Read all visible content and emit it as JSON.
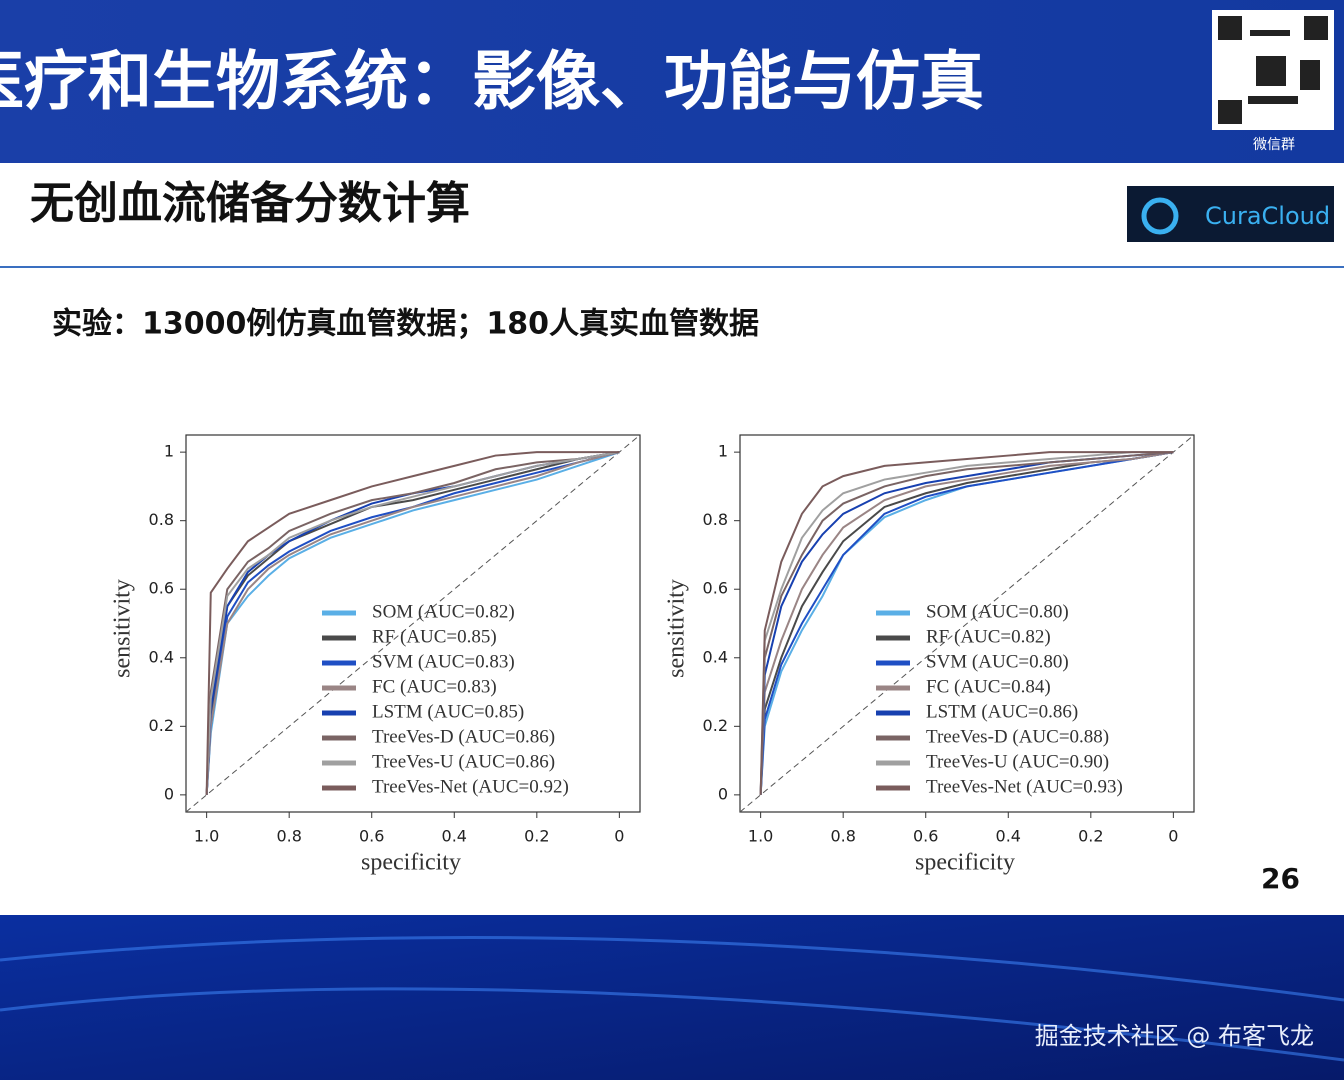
{
  "slide": {
    "title": "医疗和生物系统：影像、功能与仿真",
    "qr_caption": "微信群",
    "subtitle": "无创血流储备分数计算",
    "logo": "CuraCloud",
    "experiment": "实验：13000例仿真血管数据；180人真实血管数据",
    "page_number": "26",
    "watermark": "掘金技术社区 @ 布客飞龙"
  },
  "chart_data": [
    {
      "type": "line",
      "x_label": "specificity",
      "y_label": "sensitivity",
      "xlim": [
        1.05,
        -0.05
      ],
      "ylim": [
        -0.05,
        1.05
      ],
      "xticks": [
        {
          "value": 1,
          "label": "1.0"
        },
        0.8,
        0.6,
        0.4,
        0.2,
        0
      ],
      "yticks": [
        0,
        0.2,
        0.4,
        0.6,
        0.8,
        1
      ],
      "x": [
        1.0,
        0.99,
        0.95,
        0.9,
        0.85,
        0.8,
        0.7,
        0.6,
        0.5,
        0.4,
        0.3,
        0.2,
        0.1,
        0.0
      ],
      "series": [
        {
          "name": "SOM (AUC=0.82)",
          "color": "#5aafe6",
          "values": [
            0,
            0.18,
            0.5,
            0.58,
            0.64,
            0.69,
            0.75,
            0.79,
            0.83,
            0.86,
            0.89,
            0.92,
            0.96,
            1.0
          ]
        },
        {
          "name": "RF (AUC=0.85)",
          "color": "#4a4a4a",
          "values": [
            0,
            0.22,
            0.55,
            0.64,
            0.69,
            0.74,
            0.79,
            0.84,
            0.86,
            0.89,
            0.92,
            0.95,
            0.98,
            1.0
          ]
        },
        {
          "name": "SVM (AUC=0.83)",
          "color": "#1f4fc4",
          "values": [
            0,
            0.2,
            0.52,
            0.62,
            0.67,
            0.71,
            0.77,
            0.81,
            0.84,
            0.88,
            0.91,
            0.94,
            0.97,
            1.0
          ]
        },
        {
          "name": "FC (AUC=0.83)",
          "color": "#9a8585",
          "values": [
            0,
            0.2,
            0.5,
            0.6,
            0.66,
            0.7,
            0.76,
            0.8,
            0.84,
            0.87,
            0.9,
            0.93,
            0.97,
            1.0
          ]
        },
        {
          "name": "LSTM (AUC=0.85)",
          "color": "#1740b0",
          "values": [
            0,
            0.25,
            0.55,
            0.65,
            0.7,
            0.74,
            0.8,
            0.85,
            0.88,
            0.9,
            0.93,
            0.96,
            0.98,
            1.0
          ]
        },
        {
          "name": "TreeVes-D (AUC=0.86)",
          "color": "#7a6464",
          "values": [
            0,
            0.3,
            0.6,
            0.68,
            0.72,
            0.77,
            0.82,
            0.86,
            0.88,
            0.91,
            0.95,
            0.97,
            0.98,
            1.0
          ]
        },
        {
          "name": "TreeVes-U (AUC=0.86)",
          "color": "#a0a0a0",
          "values": [
            0,
            0.28,
            0.58,
            0.66,
            0.7,
            0.75,
            0.8,
            0.84,
            0.87,
            0.9,
            0.93,
            0.96,
            0.98,
            1.0
          ]
        },
        {
          "name": "TreeVes-Net (AUC=0.92)",
          "color": "#7a5c5c",
          "values": [
            0,
            0.59,
            0.66,
            0.74,
            0.78,
            0.82,
            0.86,
            0.9,
            0.93,
            0.96,
            0.99,
            1.0,
            1.0,
            1.0
          ]
        }
      ]
    },
    {
      "type": "line",
      "x_label": "specificity",
      "y_label": "sensitivity",
      "xlim": [
        1.05,
        -0.05
      ],
      "ylim": [
        -0.05,
        1.05
      ],
      "xticks": [
        {
          "value": 1,
          "label": "1.0"
        },
        0.8,
        0.6,
        0.4,
        0.2,
        0
      ],
      "yticks": [
        0,
        0.2,
        0.4,
        0.6,
        0.8,
        1
      ],
      "x": [
        1.0,
        0.99,
        0.95,
        0.9,
        0.85,
        0.8,
        0.7,
        0.6,
        0.5,
        0.4,
        0.3,
        0.2,
        0.1,
        0.0
      ],
      "series": [
        {
          "name": "SOM (AUC=0.80)",
          "color": "#5aafe6",
          "values": [
            0,
            0.2,
            0.36,
            0.48,
            0.58,
            0.7,
            0.81,
            0.86,
            0.9,
            0.92,
            0.94,
            0.96,
            0.98,
            1
          ]
        },
        {
          "name": "RF (AUC=0.82)",
          "color": "#4a4a4a",
          "values": [
            0,
            0.25,
            0.4,
            0.55,
            0.65,
            0.74,
            0.84,
            0.88,
            0.91,
            0.93,
            0.95,
            0.97,
            0.98,
            1
          ]
        },
        {
          "name": "SVM (AUC=0.80)",
          "color": "#1f4fc4",
          "values": [
            0,
            0.22,
            0.38,
            0.5,
            0.6,
            0.7,
            0.82,
            0.87,
            0.9,
            0.92,
            0.94,
            0.96,
            0.98,
            1
          ]
        },
        {
          "name": "FC (AUC=0.84)",
          "color": "#9a8585",
          "values": [
            0,
            0.3,
            0.45,
            0.6,
            0.7,
            0.78,
            0.86,
            0.9,
            0.92,
            0.94,
            0.96,
            0.97,
            0.98,
            1
          ]
        },
        {
          "name": "LSTM (AUC=0.86)",
          "color": "#1740b0",
          "values": [
            0,
            0.35,
            0.55,
            0.68,
            0.76,
            0.82,
            0.88,
            0.91,
            0.93,
            0.95,
            0.97,
            0.98,
            0.99,
            1
          ]
        },
        {
          "name": "TreeVes-D (AUC=0.88)",
          "color": "#7a6464",
          "values": [
            0,
            0.4,
            0.58,
            0.7,
            0.8,
            0.85,
            0.9,
            0.93,
            0.95,
            0.96,
            0.97,
            0.98,
            0.99,
            1
          ]
        },
        {
          "name": "TreeVes-U (AUC=0.90)",
          "color": "#a0a0a0",
          "values": [
            0,
            0.45,
            0.6,
            0.75,
            0.83,
            0.88,
            0.92,
            0.94,
            0.96,
            0.97,
            0.98,
            0.99,
            1,
            1
          ]
        },
        {
          "name": "TreeVes-Net (AUC=0.93)",
          "color": "#7a5c5c",
          "values": [
            0,
            0.48,
            0.68,
            0.82,
            0.9,
            0.93,
            0.96,
            0.97,
            0.98,
            0.99,
            1,
            1,
            1,
            1
          ]
        }
      ]
    }
  ]
}
